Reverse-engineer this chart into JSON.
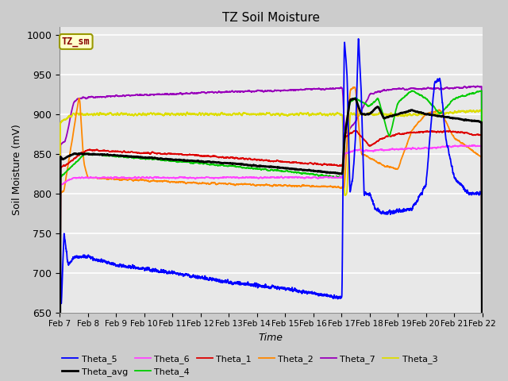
{
  "title": "TZ Soil Moisture",
  "xlabel": "Time",
  "ylabel": "Soil Moisture (mV)",
  "ylim": [
    650,
    1010
  ],
  "xlim": [
    0,
    15
  ],
  "fig_bg": "#cccccc",
  "ax_bg": "#e8e8e8",
  "grid_color": "#ffffff",
  "label_box_text": "TZ_sm",
  "label_box_bg": "#ffffcc",
  "label_box_edge": "#999900",
  "label_box_fg": "#880000",
  "xtick_labels": [
    "Feb 7",
    "Feb 8",
    "Feb 9",
    "Feb 10",
    "Feb 11",
    "Feb 12",
    "Feb 13",
    "Feb 14",
    "Feb 15",
    "Feb 16",
    "Feb 17",
    "Feb 18",
    "Feb 19",
    "Feb 20",
    "Feb 21",
    "Feb 22"
  ],
  "series_colors": {
    "Theta_1": "#dd0000",
    "Theta_2": "#ff8800",
    "Theta_3": "#dddd00",
    "Theta_4": "#00cc00",
    "Theta_5": "#0000ff",
    "Theta_6": "#ff44ff",
    "Theta_7": "#9900bb",
    "Theta_avg": "#000000"
  }
}
